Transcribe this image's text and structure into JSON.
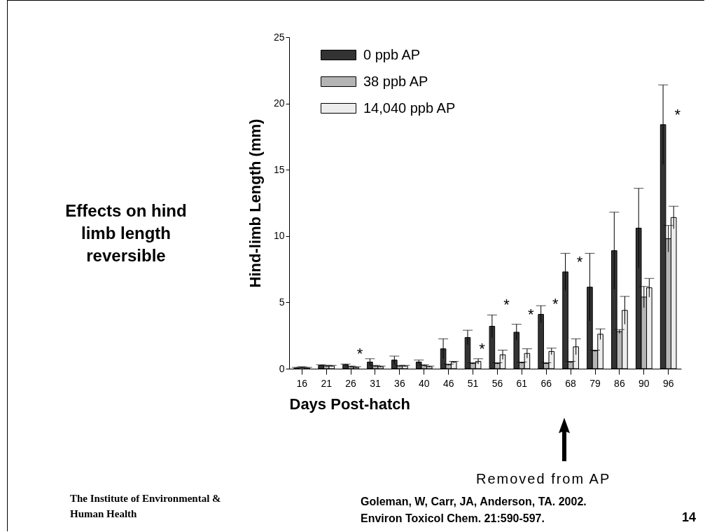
{
  "chart_data": {
    "type": "bar",
    "xlabel": "Days Post-hatch",
    "ylabel": "Hind-limb Length (mm)",
    "categories": [
      "16",
      "21",
      "26",
      "31",
      "36",
      "40",
      "46",
      "51",
      "56",
      "61",
      "66",
      "68",
      "79",
      "86",
      "90",
      "96"
    ],
    "series": [
      {
        "name": "0 ppb AP",
        "color": "#333333",
        "values": [
          0.05,
          0.25,
          0.3,
          0.5,
          0.65,
          0.5,
          1.5,
          2.35,
          3.2,
          2.75,
          4.1,
          7.3,
          6.15,
          8.9,
          10.6,
          18.4
        ],
        "errors": [
          0.05,
          0.05,
          0.05,
          0.25,
          0.3,
          0.15,
          0.75,
          0.55,
          0.85,
          0.6,
          0.65,
          1.4,
          2.55,
          2.9,
          3.0,
          3.0
        ]
      },
      {
        "name": "38 ppb AP",
        "color": "#b4b4b4",
        "values": [
          0.1,
          0.2,
          0.15,
          0.2,
          0.2,
          0.25,
          0.3,
          0.4,
          0.4,
          0.45,
          0.4,
          0.5,
          1.35,
          2.8,
          5.4,
          9.8
        ],
        "errors": [
          0.05,
          0.05,
          0.05,
          0.05,
          0.05,
          0.05,
          0.05,
          0.05,
          0.05,
          0.05,
          0.05,
          0.05,
          0.05,
          0.15,
          0.8,
          1.0
        ]
      },
      {
        "name": "14,040 ppb AP",
        "color": "#ececec",
        "values": [
          0.05,
          0.2,
          0.1,
          0.15,
          0.2,
          0.15,
          0.5,
          0.55,
          1.05,
          1.15,
          1.3,
          1.65,
          2.6,
          4.4,
          6.1,
          11.4
        ],
        "errors": [
          0.05,
          0.05,
          0.05,
          0.05,
          0.05,
          0.05,
          0.05,
          0.2,
          0.35,
          0.35,
          0.25,
          0.6,
          0.4,
          1.05,
          0.7,
          0.85
        ]
      }
    ],
    "ylim": [
      0,
      25
    ],
    "yticks": [
      0,
      5,
      10,
      15,
      20,
      25
    ],
    "grid": false,
    "legend": "top left",
    "annotations": [
      "Effects on hind limb length reversible",
      "Removed from AP",
      "The Institute of Environmental & Human Health",
      "Goleman, W, Carr, JA, Anderson, TA. 2002. Environ Toxicol Chem. 21:590-597.",
      "14",
      {
        "text": "*",
        "x": "26",
        "y": 0.35
      },
      {
        "text": "*",
        "x": "51",
        "y": 0.75
      },
      {
        "text": "*",
        "x": "56",
        "y": 4.05
      },
      {
        "text": "*",
        "x": "61",
        "y": 3.35
      },
      {
        "text": "*",
        "x": "66",
        "y": 4.1
      },
      {
        "text": "*",
        "x": "68",
        "y": 7.3
      },
      {
        "text": "*",
        "x": "96",
        "y": 18.4
      }
    ]
  }
}
